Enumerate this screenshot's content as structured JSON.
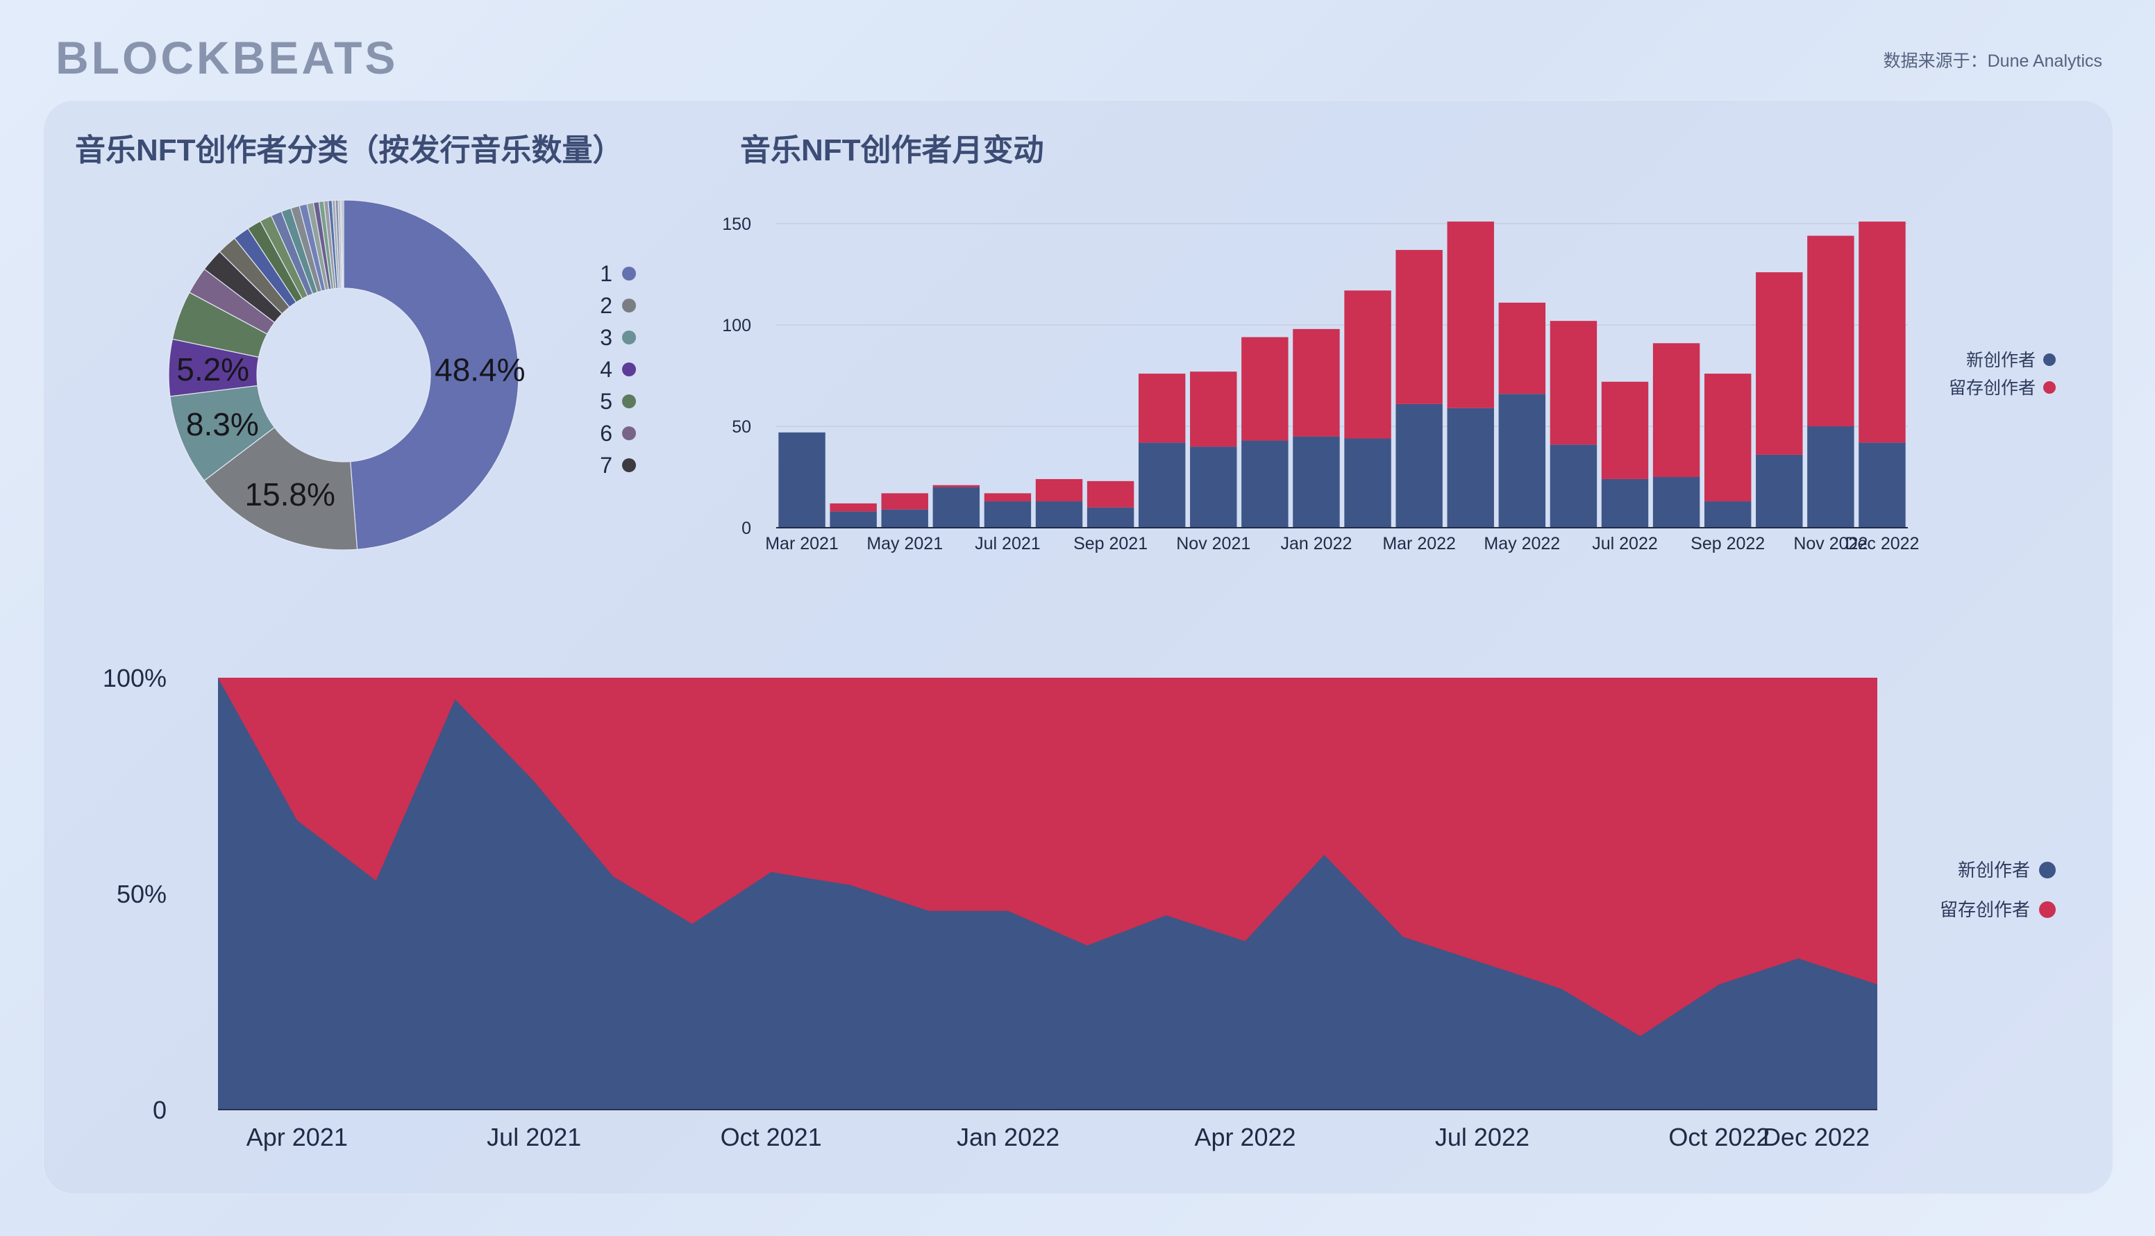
{
  "header": {
    "logo_text": "BLOCKBEATS",
    "source_text": "数据来源于：Dune Analytics"
  },
  "colors": {
    "new": "#3e5587",
    "retained": "#cc3052",
    "axis": "#1f2a44",
    "grid": "#c4cee0"
  },
  "donut": {
    "title": "音乐NFT创作者分类（按发行音乐数量）",
    "chart_data": {
      "type": "pie",
      "title": "音乐NFT创作者分类（按发行音乐数量）",
      "legend_position": "right",
      "slices": [
        {
          "label": "1",
          "value": 48.4,
          "color": "#6570b0",
          "data_label": "48.4%"
        },
        {
          "label": "2",
          "value": 15.8,
          "color": "#7a7e82",
          "data_label": "15.8%"
        },
        {
          "label": "3",
          "value": 8.3,
          "color": "#6b9096",
          "data_label": "8.3%"
        },
        {
          "label": "4",
          "value": 5.2,
          "color": "#5c3c96",
          "data_label": "5.2%"
        },
        {
          "label": "5",
          "value": 4.5,
          "color": "#5d7a5c",
          "data_label": ""
        },
        {
          "label": "6",
          "value": 2.5,
          "color": "#7a6388",
          "data_label": ""
        },
        {
          "label": "7",
          "value": 2.1,
          "color": "#3d3a40",
          "data_label": ""
        },
        {
          "label": "",
          "value": 1.8,
          "color": "#6b6a62",
          "data_label": ""
        },
        {
          "label": "",
          "value": 1.5,
          "color": "#4c5ea0",
          "data_label": ""
        },
        {
          "label": "",
          "value": 1.3,
          "color": "#55704e",
          "data_label": ""
        },
        {
          "label": "",
          "value": 1.1,
          "color": "#6e8a67",
          "data_label": ""
        },
        {
          "label": "",
          "value": 1.0,
          "color": "#6a78a8",
          "data_label": ""
        },
        {
          "label": "",
          "value": 0.9,
          "color": "#5e8c90",
          "data_label": ""
        },
        {
          "label": "",
          "value": 0.8,
          "color": "#858a90",
          "data_label": ""
        },
        {
          "label": "",
          "value": 0.7,
          "color": "#7280b8",
          "data_label": ""
        },
        {
          "label": "",
          "value": 0.6,
          "color": "#93a29a",
          "data_label": ""
        },
        {
          "label": "",
          "value": 0.5,
          "color": "#6b5f8e",
          "data_label": ""
        },
        {
          "label": "",
          "value": 0.45,
          "color": "#7ba08b",
          "data_label": ""
        },
        {
          "label": "",
          "value": 0.4,
          "color": "#9a9ca6",
          "data_label": ""
        },
        {
          "label": "",
          "value": 0.35,
          "color": "#5870a8",
          "data_label": ""
        },
        {
          "label": "",
          "value": 0.3,
          "color": "#a7aeb8",
          "data_label": ""
        },
        {
          "label": "",
          "value": 0.25,
          "color": "#8892a4",
          "data_label": ""
        },
        {
          "label": "",
          "value": 0.2,
          "color": "#b2b6c0",
          "data_label": ""
        },
        {
          "label": "",
          "value": 0.15,
          "color": "#c4c8d0",
          "data_label": ""
        },
        {
          "label": "",
          "value": 0.15,
          "color": "#9ea4b0",
          "data_label": ""
        }
      ]
    }
  },
  "bars": {
    "title": "音乐NFT创作者月变动",
    "legend": [
      "新创作者",
      "留存创作者"
    ],
    "chart_data": {
      "type": "bar",
      "stacked": true,
      "title": "音乐NFT创作者月变动",
      "categories": [
        "Mar 2021",
        "Apr 2021",
        "May 2021",
        "Jun 2021",
        "Jul 2021",
        "Aug 2021",
        "Sep 2021",
        "Oct 2021",
        "Nov 2021",
        "Dec 2021",
        "Jan 2022",
        "Feb 2022",
        "Mar 2022",
        "Apr 2022",
        "May 2022",
        "Jun 2022",
        "Jul 2022",
        "Aug 2022",
        "Sep 2022",
        "Oct 2022",
        "Nov 2022",
        "Dec 2022"
      ],
      "x_tick_labels": [
        "Mar 2021",
        "May 2021",
        "Jul 2021",
        "Sep 2021",
        "Nov 2021",
        "Jan 2022",
        "Mar 2022",
        "May 2022",
        "Jul 2022",
        "Sep 2022",
        "Nov 2022",
        "Dec 2022"
      ],
      "series": [
        {
          "name": "新创作者",
          "color": "#3e5587",
          "values": [
            47,
            8,
            9,
            20,
            13,
            13,
            10,
            42,
            40,
            43,
            45,
            44,
            61,
            59,
            66,
            41,
            24,
            25,
            13,
            36,
            50,
            42
          ]
        },
        {
          "name": "留存创作者",
          "color": "#cc3052",
          "values": [
            0,
            4,
            8,
            1,
            4,
            11,
            13,
            34,
            37,
            51,
            53,
            73,
            76,
            92,
            45,
            61,
            48,
            66,
            63,
            90,
            94,
            109
          ]
        }
      ],
      "ylim": [
        0,
        150
      ],
      "yticks": [
        0,
        50,
        100,
        150
      ],
      "legend_position": "right"
    }
  },
  "area": {
    "legend": [
      "新创作者",
      "留存创作者"
    ],
    "chart_data": {
      "type": "area",
      "stacked": true,
      "normalized": true,
      "x": [
        "Mar 2021",
        "Apr 2021",
        "May 2021",
        "Jun 2021",
        "Jul 2021",
        "Aug 2021",
        "Sep 2021",
        "Oct 2021",
        "Nov 2021",
        "Dec 2021",
        "Jan 2022",
        "Feb 2022",
        "Mar 2022",
        "Apr 2022",
        "May 2022",
        "Jun 2022",
        "Jul 2022",
        "Aug 2022",
        "Sep 2022",
        "Oct 2022",
        "Nov 2022",
        "Dec 2022"
      ],
      "x_tick_labels": [
        "Apr 2021",
        "Jul 2021",
        "Oct 2021",
        "Jan 2022",
        "Apr 2022",
        "Jul 2022",
        "Oct 2022",
        "Dec 2022"
      ],
      "series": [
        {
          "name": "新创作者",
          "color": "#3e5587",
          "values": [
            100,
            67,
            53,
            95,
            76,
            54,
            43,
            55,
            52,
            46,
            46,
            38,
            45,
            39,
            59,
            40,
            34,
            28,
            17,
            29,
            35,
            29
          ]
        },
        {
          "name": "留存创作者",
          "color": "#cc3052",
          "values": [
            0,
            33,
            47,
            5,
            24,
            46,
            57,
            45,
            48,
            54,
            54,
            62,
            55,
            61,
            41,
            60,
            66,
            72,
            83,
            71,
            65,
            71
          ]
        }
      ],
      "yticks": [
        "0",
        "50%",
        "100%"
      ],
      "ylim": [
        0,
        100
      ],
      "legend_position": "right"
    }
  }
}
